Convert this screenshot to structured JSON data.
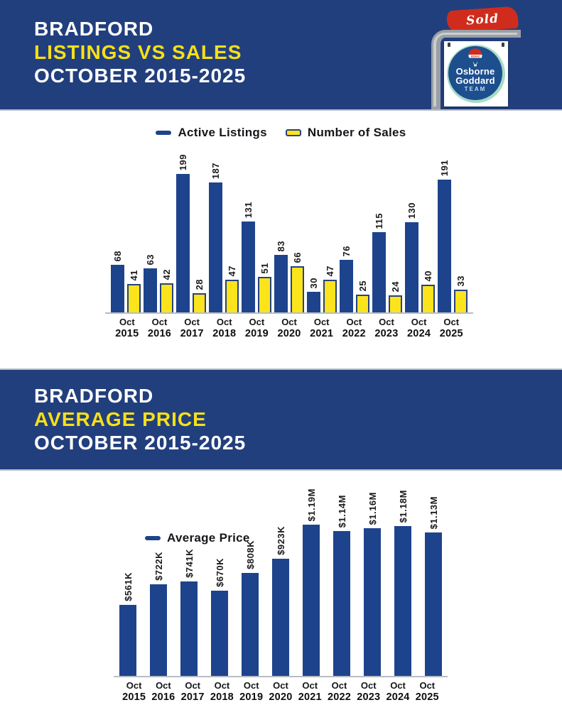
{
  "header_listings": {
    "city": "BRADFORD",
    "subject": "LISTINGS VS SALES",
    "period": "OCTOBER 2015-2025"
  },
  "header_price": {
    "city": "BRADFORD",
    "subject": "AVERAGE PRICE",
    "period": "OCTOBER 2015-2025"
  },
  "logo": {
    "sold": "Sold",
    "name_line1": "Osborne",
    "name_line2": "Goddard",
    "name_line3": "TEAM",
    "brand": "REMAX"
  },
  "colors": {
    "band_blue": "#223f7d",
    "bar_blue": "#1d438c",
    "bar_yellow": "#fce41c",
    "title_yellow": "#f7e017",
    "sold_red": "#d02c1d",
    "axis_gray": "#b6bdc6",
    "circle_blue": "#1d4f8f",
    "ring_teal": "#a6dcc6"
  },
  "chart_data": [
    {
      "type": "bar",
      "title": "BRADFORD LISTINGS VS SALES OCTOBER 2015-2025",
      "categories": [
        "Oct 2015",
        "Oct 2016",
        "Oct 2017",
        "Oct 2018",
        "Oct 2019",
        "Oct 2020",
        "Oct 2021",
        "Oct 2022",
        "Oct 2023",
        "Oct 2024",
        "Oct 2025"
      ],
      "series": [
        {
          "name": "Active Listings",
          "color": "#1d438c",
          "values": [
            68,
            63,
            199,
            187,
            131,
            83,
            30,
            76,
            115,
            130,
            191
          ]
        },
        {
          "name": "Number of Sales",
          "color": "#fce41c",
          "values": [
            41,
            42,
            28,
            47,
            51,
            66,
            47,
            25,
            24,
            40,
            33
          ]
        }
      ],
      "value_labels": true,
      "legend_position": "top-center",
      "grid": false,
      "ylim": [
        0,
        210
      ]
    },
    {
      "type": "bar",
      "title": "BRADFORD AVERAGE PRICE OCTOBER 2015-2025",
      "categories": [
        "Oct 2015",
        "Oct 2016",
        "Oct 2017",
        "Oct 2018",
        "Oct 2019",
        "Oct 2020",
        "Oct 2021",
        "Oct 2022",
        "Oct 2023",
        "Oct 2024",
        "Oct 2025"
      ],
      "series": [
        {
          "name": "Average Price",
          "color": "#1d438c",
          "values": [
            561000,
            722000,
            741000,
            670000,
            808000,
            923000,
            1190000,
            1140000,
            1160000,
            1180000,
            1130000
          ],
          "labels": [
            "$561K",
            "$722K",
            "$741K",
            "$670K",
            "$808K",
            "$923K",
            "$1.19M",
            "$1.14M",
            "$1.16M",
            "$1.18M",
            "$1.13M"
          ]
        }
      ],
      "value_labels": true,
      "legend_position": "upper-left",
      "grid": false,
      "ylim": [
        0,
        1250000
      ]
    }
  ]
}
